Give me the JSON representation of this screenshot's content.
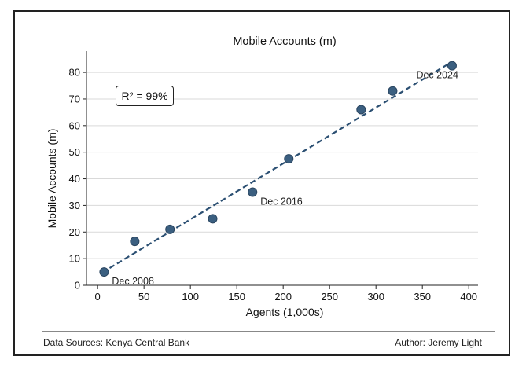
{
  "footer": {
    "source": "Data Sources: Kenya Central Bank",
    "author": "Author: Jeremy Light"
  },
  "annotation": {
    "r2_letter": "R",
    "r2_exponent": "2",
    "r2_value": " = 99%"
  },
  "colors": {
    "marker": "#3b5f80",
    "marker_edge": "#2a4560",
    "trend": "#2b4f72",
    "grid": "#d9d9d9"
  },
  "chart_data": {
    "type": "scatter",
    "title": "Mobile Accounts (m)",
    "xlabel": "Agents (1,000s)",
    "ylabel": "Mobile Accounts (m)",
    "xlim": [
      -12,
      410
    ],
    "ylim": [
      0,
      88
    ],
    "xticks": [
      0,
      50,
      100,
      150,
      200,
      250,
      300,
      350,
      400
    ],
    "yticks": [
      0,
      10,
      20,
      30,
      40,
      50,
      60,
      70,
      80
    ],
    "grid": true,
    "points": [
      {
        "x": 7,
        "y": 5,
        "label": "Dec 2008"
      },
      {
        "x": 40,
        "y": 16.5,
        "label": ""
      },
      {
        "x": 78,
        "y": 21,
        "label": ""
      },
      {
        "x": 124,
        "y": 25,
        "label": ""
      },
      {
        "x": 167,
        "y": 35,
        "label": "Dec 2016"
      },
      {
        "x": 206,
        "y": 47.5,
        "label": ""
      },
      {
        "x": 284,
        "y": 66,
        "label": ""
      },
      {
        "x": 318,
        "y": 73,
        "label": ""
      },
      {
        "x": 382,
        "y": 82.5,
        "label": "Dec 2024"
      }
    ],
    "trendline": {
      "x": [
        5,
        382
      ],
      "y": [
        4.8,
        84
      ]
    }
  }
}
